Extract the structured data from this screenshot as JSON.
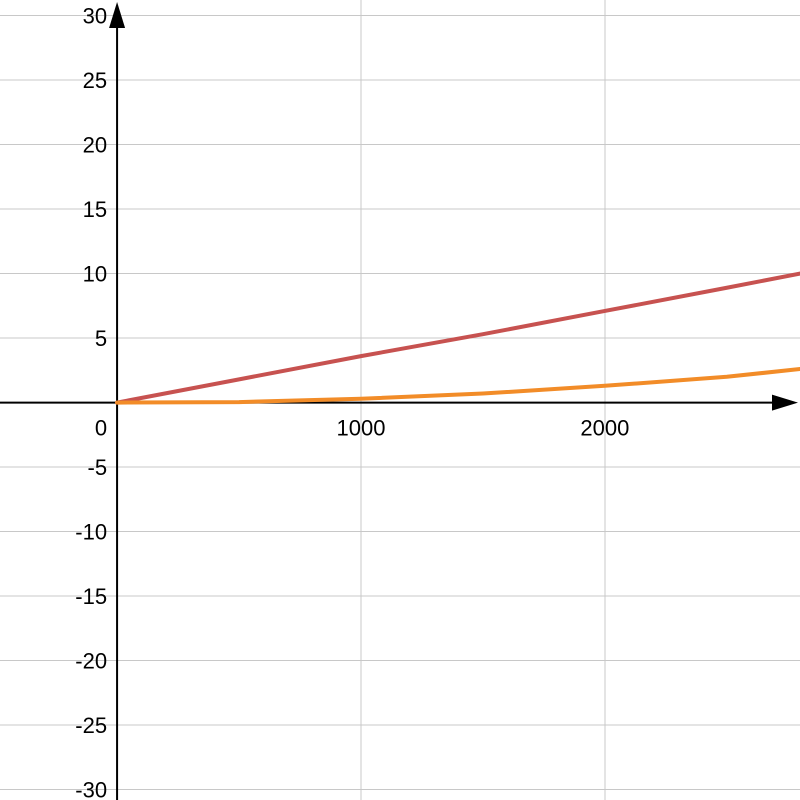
{
  "chart_data": {
    "type": "line",
    "title": "",
    "xlabel": "",
    "ylabel": "",
    "xlim": [
      -480,
      2800
    ],
    "ylim": [
      -30.8,
      31.2
    ],
    "grid": true,
    "x_ticks": [
      {
        "value": 1000,
        "label": "1000"
      },
      {
        "value": 2000,
        "label": "2000"
      }
    ],
    "y_ticks": [
      {
        "value": 30,
        "label": "30"
      },
      {
        "value": 25,
        "label": "25"
      },
      {
        "value": 20,
        "label": "20"
      },
      {
        "value": 15,
        "label": "15"
      },
      {
        "value": 10,
        "label": "10"
      },
      {
        "value": 5,
        "label": "5"
      },
      {
        "value": -5,
        "label": "-5"
      },
      {
        "value": -10,
        "label": "-10"
      },
      {
        "value": -15,
        "label": "-15"
      },
      {
        "value": -20,
        "label": "-20"
      },
      {
        "value": -25,
        "label": "-25"
      },
      {
        "value": -30,
        "label": "-30"
      }
    ],
    "origin_label": "0",
    "series": [
      {
        "color": "#c75250",
        "x": [
          0,
          500,
          1000,
          1500,
          2000,
          2500,
          2800
        ],
        "y": [
          0,
          1.8,
          3.6,
          5.3,
          7.1,
          8.9,
          10.0
        ]
      },
      {
        "color": "#f28c28",
        "x": [
          0,
          500,
          1000,
          1500,
          2000,
          2500,
          2800
        ],
        "y": [
          0,
          0.04,
          0.3,
          0.7,
          1.3,
          2.0,
          2.6
        ]
      }
    ]
  }
}
